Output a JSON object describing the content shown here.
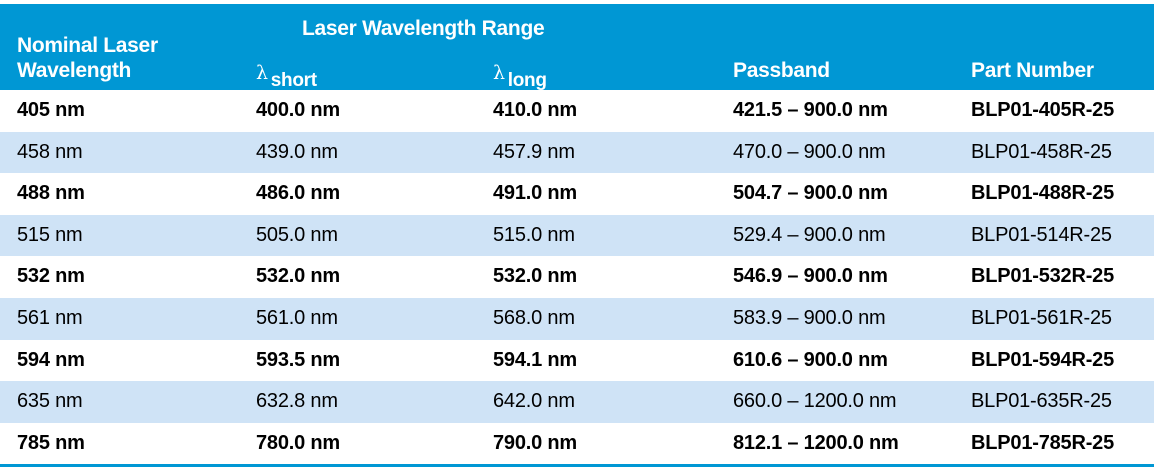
{
  "header": {
    "nominal_line1": "Nominal Laser",
    "nominal_line2": "Wavelength",
    "range": "Laser Wavelength Range",
    "lambda": "λ",
    "short": "short",
    "long": "long",
    "passband": "Passband",
    "part_number": "Part Number"
  },
  "colors": {
    "header_bg": "#0097d4",
    "stripe": "#cfe3f6"
  },
  "rows": [
    {
      "nominal": "405 nm",
      "short": "400.0 nm",
      "long": "410.0 nm",
      "passband": "421.5 – 900.0 nm",
      "part": "BLP01-405R-25"
    },
    {
      "nominal": "458 nm",
      "short": "439.0 nm",
      "long": "457.9 nm",
      "passband": "470.0 – 900.0 nm",
      "part": "BLP01-458R-25"
    },
    {
      "nominal": "488 nm",
      "short": "486.0 nm",
      "long": "491.0 nm",
      "passband": "504.7 – 900.0 nm",
      "part": "BLP01-488R-25"
    },
    {
      "nominal": "515 nm",
      "short": "505.0 nm",
      "long": "515.0 nm",
      "passband": "529.4 – 900.0 nm",
      "part": "BLP01-514R-25"
    },
    {
      "nominal": "532 nm",
      "short": "532.0 nm",
      "long": "532.0 nm",
      "passband": "546.9 – 900.0 nm",
      "part": "BLP01-532R-25"
    },
    {
      "nominal": "561 nm",
      "short": "561.0 nm",
      "long": "568.0 nm",
      "passband": "583.9 – 900.0 nm",
      "part": "BLP01-561R-25"
    },
    {
      "nominal": "594 nm",
      "short": "593.5 nm",
      "long": "594.1 nm",
      "passband": "610.6 – 900.0 nm",
      "part": "BLP01-594R-25"
    },
    {
      "nominal": "635 nm",
      "short": "632.8 nm",
      "long": "642.0 nm",
      "passband": "660.0 – 1200.0 nm",
      "part": "BLP01-635R-25"
    },
    {
      "nominal": "785 nm",
      "short": "780.0 nm",
      "long": "790.0 nm",
      "passband": "812.1 – 1200.0 nm",
      "part": "BLP01-785R-25"
    }
  ]
}
